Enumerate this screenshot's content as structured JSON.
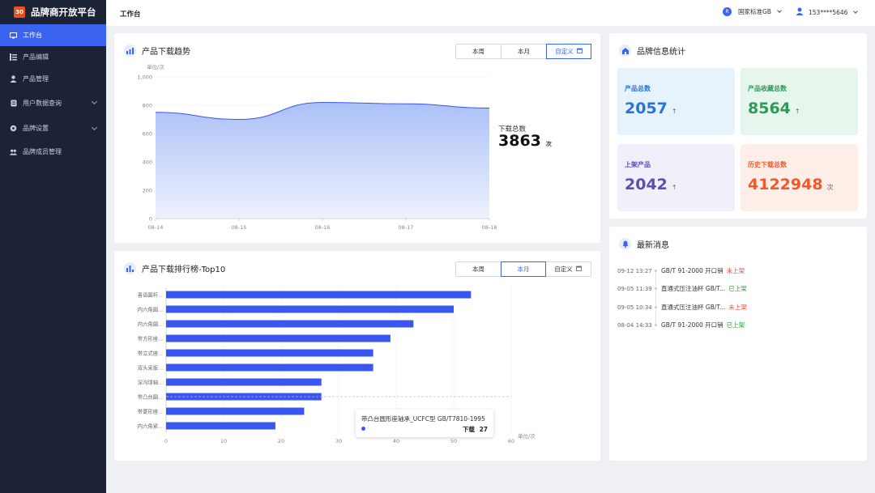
{
  "brand": {
    "logo_text": "30",
    "name": "品牌商开放平台"
  },
  "sidebar": {
    "items": [
      {
        "label": "工作台"
      },
      {
        "label": "产品编辑"
      },
      {
        "label": "产品管理"
      },
      {
        "label": "用户数据查询"
      },
      {
        "label": "品牌设置"
      },
      {
        "label": "品牌成员管理"
      }
    ]
  },
  "header": {
    "title": "工作台",
    "standard": {
      "badge": "R",
      "label": "国家标准GB"
    },
    "user": {
      "phone": "153****5646"
    }
  },
  "trend": {
    "title": "产品下载趋势",
    "tabs": [
      "本周",
      "本月",
      "自定义"
    ],
    "active_tab": 2,
    "unit": "单位/次",
    "total_label": "下载总数",
    "total_value": "3863",
    "total_unit": "次"
  },
  "ranking": {
    "title": "产品下载排行榜-Top10",
    "tabs": [
      "本周",
      "本月",
      "自定义"
    ],
    "active_tab": 1,
    "unit": "单位/次",
    "tooltip": {
      "title": "带凸台圆形座轴承_UCFC型 GB/T7810-1995",
      "label": "下载",
      "value": "27"
    }
  },
  "stats": {
    "title": "品牌信息统计",
    "tiles": [
      {
        "label": "产品总数",
        "value": "2057",
        "suffix": "↑"
      },
      {
        "label": "产品收藏总数",
        "value": "8564",
        "suffix": "↑"
      },
      {
        "label": "上架产品",
        "value": "2042",
        "suffix": "↑"
      },
      {
        "label": "历史下载总数",
        "value": "4122948",
        "suffix": "次"
      }
    ],
    "colors": [
      "#2673d9",
      "#2e9a5a",
      "#5a4fb3",
      "#f05a2a"
    ]
  },
  "messages": {
    "title": "最新消息",
    "items": [
      {
        "time": "09-12 13:27",
        "text": "GB/T 91-2000 开口销",
        "status": "未上架"
      },
      {
        "time": "09-05 11:39",
        "text": "直通式压注油杯 GB/T...",
        "status": "已上架"
      },
      {
        "time": "09-05 10:34",
        "text": "直通式压注油杯 GB/T...",
        "status": "未上架"
      },
      {
        "time": "08-04 14:33",
        "text": "GB/T 91-2000 开口销",
        "status": "已上架"
      }
    ]
  },
  "chart_data": [
    {
      "type": "area",
      "x": [
        "08-14",
        "08-15",
        "08-16",
        "08-17",
        "08-18"
      ],
      "values": [
        750,
        700,
        820,
        810,
        780
      ],
      "ylim": [
        0,
        1000
      ],
      "yticks": [
        "0",
        "200",
        "400",
        "600",
        "800",
        "1,000"
      ],
      "ylabel": "单位/次"
    },
    {
      "type": "bar",
      "orientation": "horizontal",
      "categories": [
        "喜语圆杆...",
        "内六角圆...",
        "内六角圆...",
        "带方形座...",
        "带立式座...",
        "双头呆扳...",
        "深沟球轴...",
        "带凸台圆...",
        "带菱形座...",
        "内六角紧..."
      ],
      "values": [
        53,
        50,
        43,
        39,
        36,
        36,
        27,
        27,
        24,
        19
      ],
      "xlim": [
        0,
        60
      ],
      "xticks": [
        "0",
        "10",
        "20",
        "30",
        "40",
        "50",
        "60"
      ],
      "xlabel": "单位/次"
    }
  ]
}
